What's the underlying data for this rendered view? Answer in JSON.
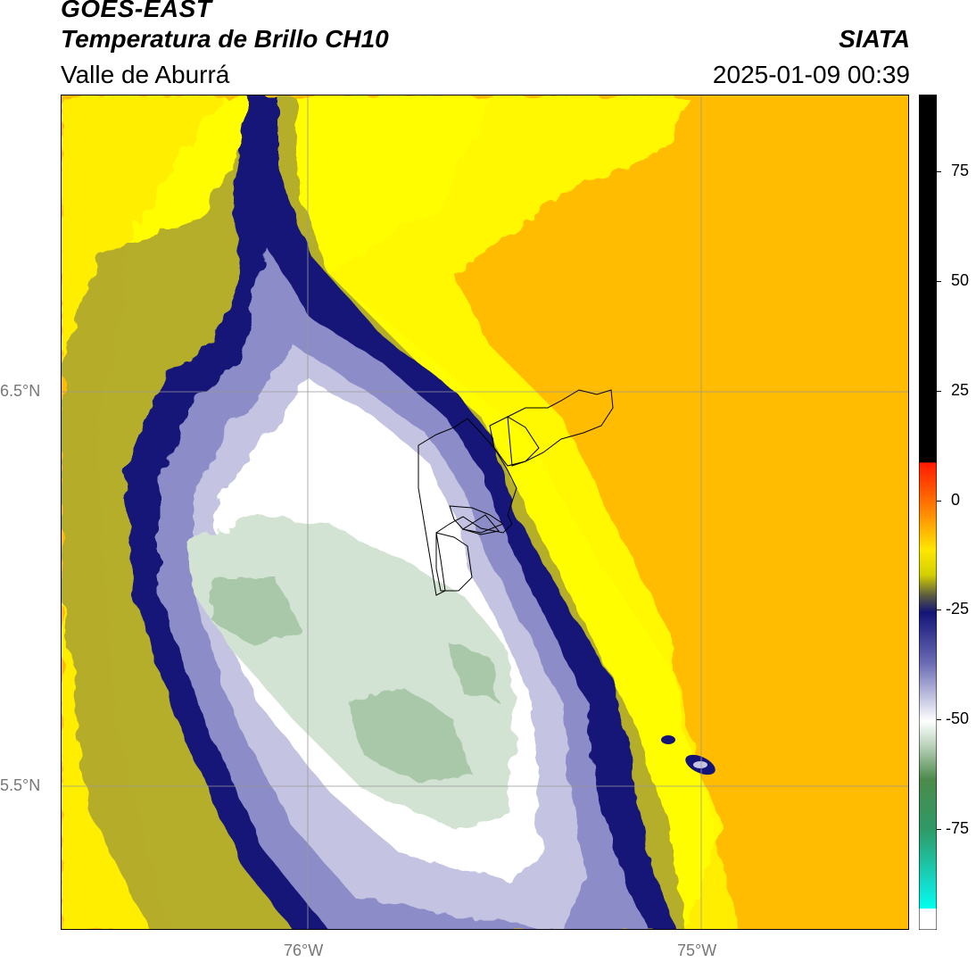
{
  "header": {
    "satellite": "GOES-EAST",
    "product": "Temperatura de Brillo CH10",
    "region": "Valle de Aburrá",
    "brand": "SIATA",
    "timestamp": "2025-01-09 00:39"
  },
  "map": {
    "lat_labels": [
      "6.5°N",
      "5.5°N"
    ],
    "lon_labels": [
      "76°W",
      "75°W"
    ],
    "colors": {
      "warm": "#ffbb00",
      "yellow": "#ffff00",
      "olive": "#8c8c1e",
      "navy": "#101070",
      "lavender": "#b8b8dc",
      "white": "#ffffff",
      "pale_green": "#c9dcc9",
      "mid_green": "#9cbf9c"
    }
  },
  "colorbar": {
    "ticks": [
      {
        "value": 75,
        "label": "75"
      },
      {
        "value": 50,
        "label": "50"
      },
      {
        "value": 25,
        "label": "25"
      },
      {
        "value": 0,
        "label": "0"
      },
      {
        "value": -25,
        "label": "-25"
      },
      {
        "value": -50,
        "label": "-50"
      },
      {
        "value": -75,
        "label": "-75"
      }
    ]
  }
}
